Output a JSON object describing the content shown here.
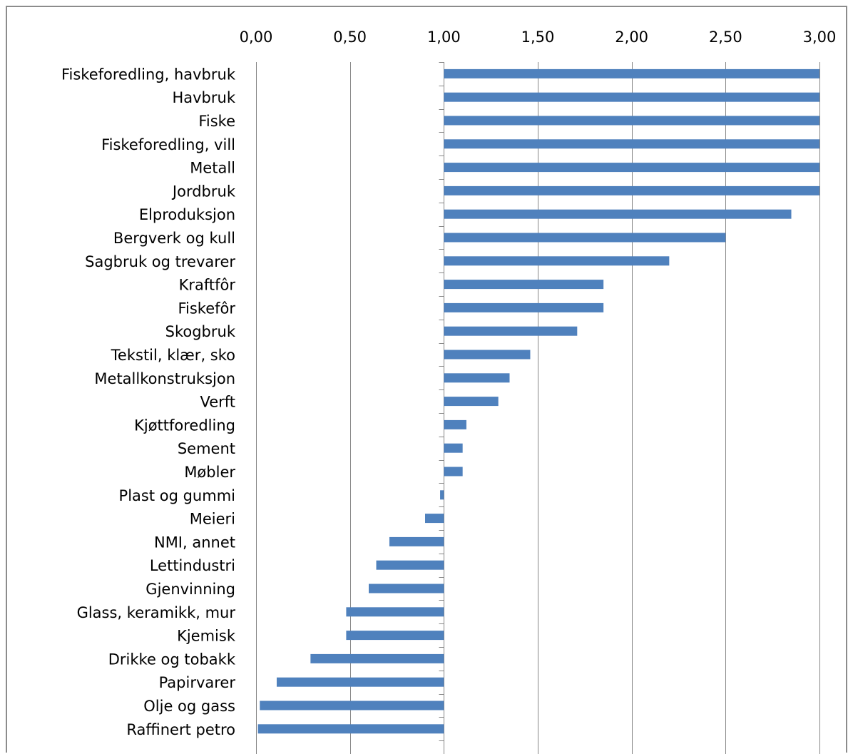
{
  "chart_data": {
    "type": "bar",
    "orientation": "horizontal",
    "baseline": 1.0,
    "title": "",
    "xlabel": "",
    "ylabel": "",
    "xlim": [
      0,
      3
    ],
    "xticks": [
      "0,00",
      "0,50",
      "1,00",
      "1,50",
      "2,00",
      "2,50",
      "3,00"
    ],
    "xtick_values": [
      0,
      0.5,
      1,
      1.5,
      2,
      2.5,
      3
    ],
    "grid": "vertical",
    "legend": "none",
    "bar_color": "#4f81bd",
    "categories": [
      "Fiskeforedling, havbruk",
      "Havbruk",
      "Fiske",
      "Fiskeforedling, vill",
      "Metall",
      "Jordbruk",
      "Elproduksjon",
      "Bergverk og kull",
      "Sagbruk og trevarer",
      "Kraftfôr",
      "Fiskefôr",
      "Skogbruk",
      "Tekstil, klær, sko",
      "Metallkonstruksjon",
      "Verft",
      "Kjøttforedling",
      "Sement",
      "Møbler",
      "Plast og gummi",
      "Meieri",
      "NMI, annet",
      "Lettindustri",
      "Gjenvinning",
      "Glass, keramikk, mur",
      "Kjemisk",
      "Drikke og tobakk",
      "Papirvarer",
      "Olje og gass",
      "Raffinert petro"
    ],
    "values": [
      3.0,
      3.0,
      3.0,
      3.0,
      3.0,
      3.0,
      2.85,
      2.5,
      2.2,
      1.85,
      1.85,
      1.71,
      1.46,
      1.35,
      1.29,
      1.12,
      1.1,
      1.1,
      0.98,
      0.9,
      0.71,
      0.64,
      0.6,
      0.48,
      0.48,
      0.29,
      0.11,
      0.02,
      0.01
    ]
  }
}
